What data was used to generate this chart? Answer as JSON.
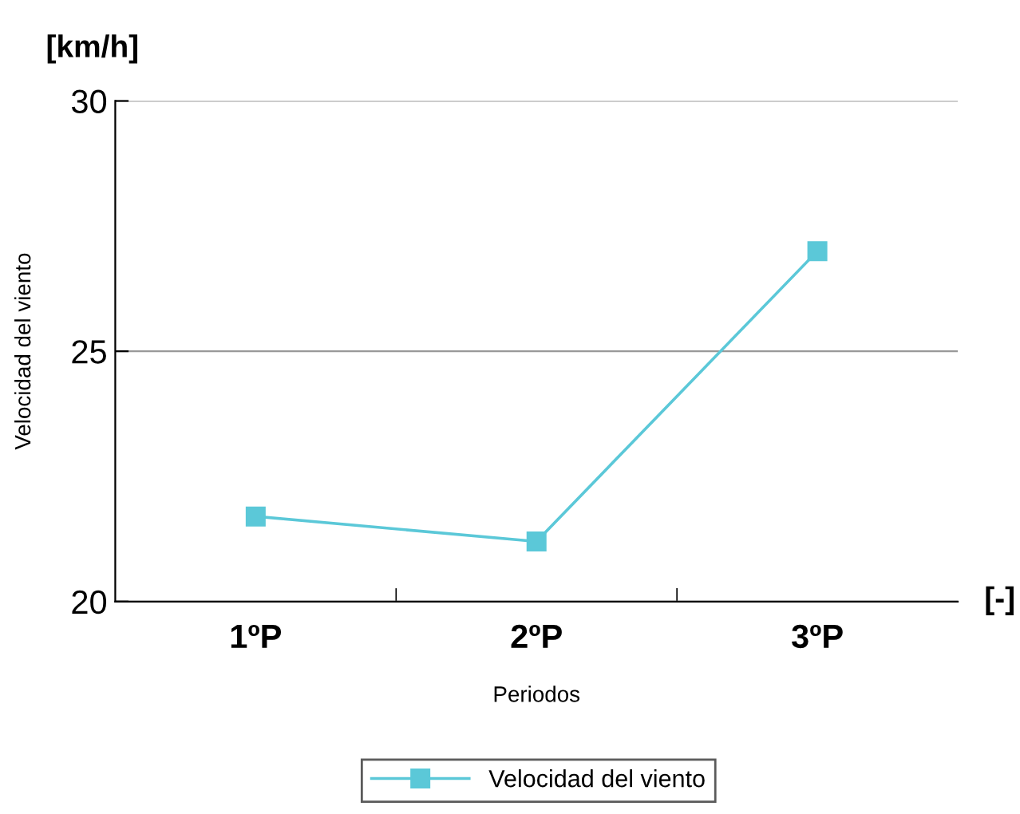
{
  "chart_data": {
    "type": "line",
    "xlabel": "Periodos",
    "ylabel": "Velocidad del viento",
    "annotations": [
      "[km/h]",
      "[-]"
    ],
    "categories": [
      "1ºP",
      "2ºP",
      "3ºP"
    ],
    "series": [
      {
        "name": "Velocidad del viento",
        "color": "#5bc8d8",
        "values": [
          21.7,
          21.2,
          27.0
        ]
      }
    ],
    "ylim": [
      20,
      30
    ],
    "yticks": [
      20,
      25,
      30
    ],
    "grid": "y",
    "legend": "bottom",
    "marker": "square",
    "line_style": "solid"
  }
}
